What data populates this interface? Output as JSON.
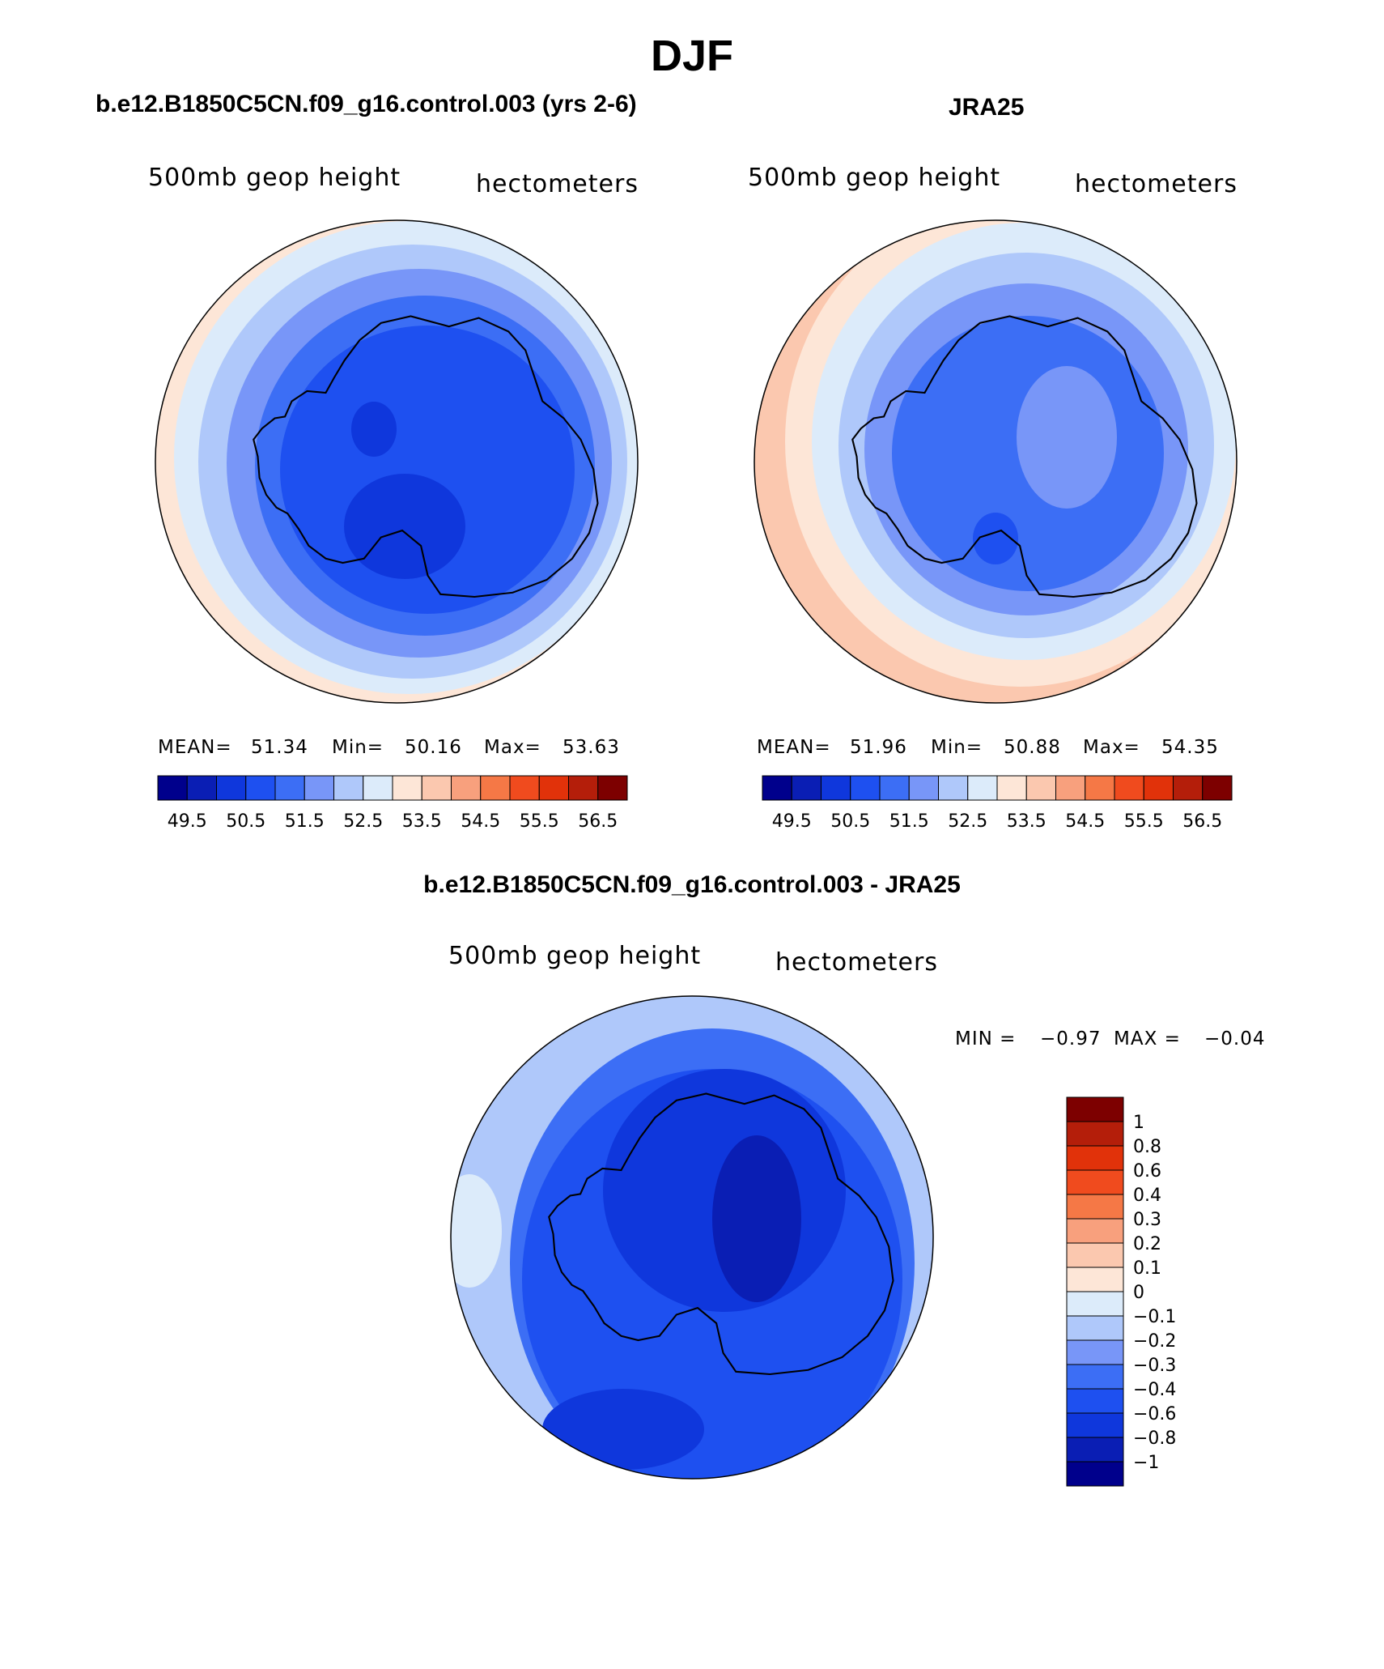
{
  "title": "DJF",
  "panels": {
    "model": {
      "title": "b.e12.B1850C5CN.f09_g16.control.003 (yrs 2-6)",
      "variable": "500mb geop height",
      "units": "hectometers",
      "mean_label": "MEAN=",
      "mean": "51.34",
      "min_label": "Min=",
      "min": "50.16",
      "max_label": "Max=",
      "max": "53.63"
    },
    "obs": {
      "title": "JRA25",
      "variable": "500mb geop height",
      "units": "hectometers",
      "mean_label": "MEAN=",
      "mean": "51.96",
      "min_label": "Min=",
      "min": "50.88",
      "max_label": "Max=",
      "max": "54.35"
    },
    "diff": {
      "title": "b.e12.B1850C5CN.f09_g16.control.003 - JRA25",
      "variable": "500mb geop height",
      "units": "hectometers",
      "min_label": "MIN =",
      "min": "−0.97",
      "max_label": "MAX =",
      "max": "−0.04"
    }
  },
  "colorbar_abs": {
    "labels": [
      "49.5",
      "50.5",
      "51.5",
      "52.5",
      "53.5",
      "54.5",
      "55.5",
      "56.5"
    ],
    "colors": [
      "#00008c",
      "#0a1eb4",
      "#0f37dc",
      "#1e50f0",
      "#3c6ef5",
      "#7896f8",
      "#afc8fa",
      "#dcebfa",
      "#fde6d7",
      "#fbc8af",
      "#f8a07d",
      "#f57846",
      "#f04b1e",
      "#e1320a",
      "#b41e0a",
      "#7d0000"
    ]
  },
  "colorbar_diff": {
    "labels": [
      "1",
      "0.8",
      "0.6",
      "0.4",
      "0.3",
      "0.2",
      "0.1",
      "0",
      "−0.1",
      "−0.2",
      "−0.3",
      "−0.4",
      "−0.6",
      "−0.8",
      "−1"
    ],
    "colors": [
      "#7d0000",
      "#b41e0a",
      "#e1320a",
      "#f04b1e",
      "#f57846",
      "#f8a07d",
      "#fbc8af",
      "#fde6d7",
      "#dcebfa",
      "#afc8fa",
      "#7896f8",
      "#3c6ef5",
      "#1e50f0",
      "#0f37dc",
      "#0a1eb4",
      "#00008c"
    ]
  },
  "map_colors": {
    "orange_rim": "#fde6d7",
    "orange_rim2": "#fbc8af",
    "pale": "#dcebfa",
    "light": "#afc8fa",
    "mid": "#7896f8",
    "medium": "#3c6ef5",
    "strong": "#1e50f0",
    "deep": "#0f37dc",
    "deeper": "#0a1eb4"
  }
}
